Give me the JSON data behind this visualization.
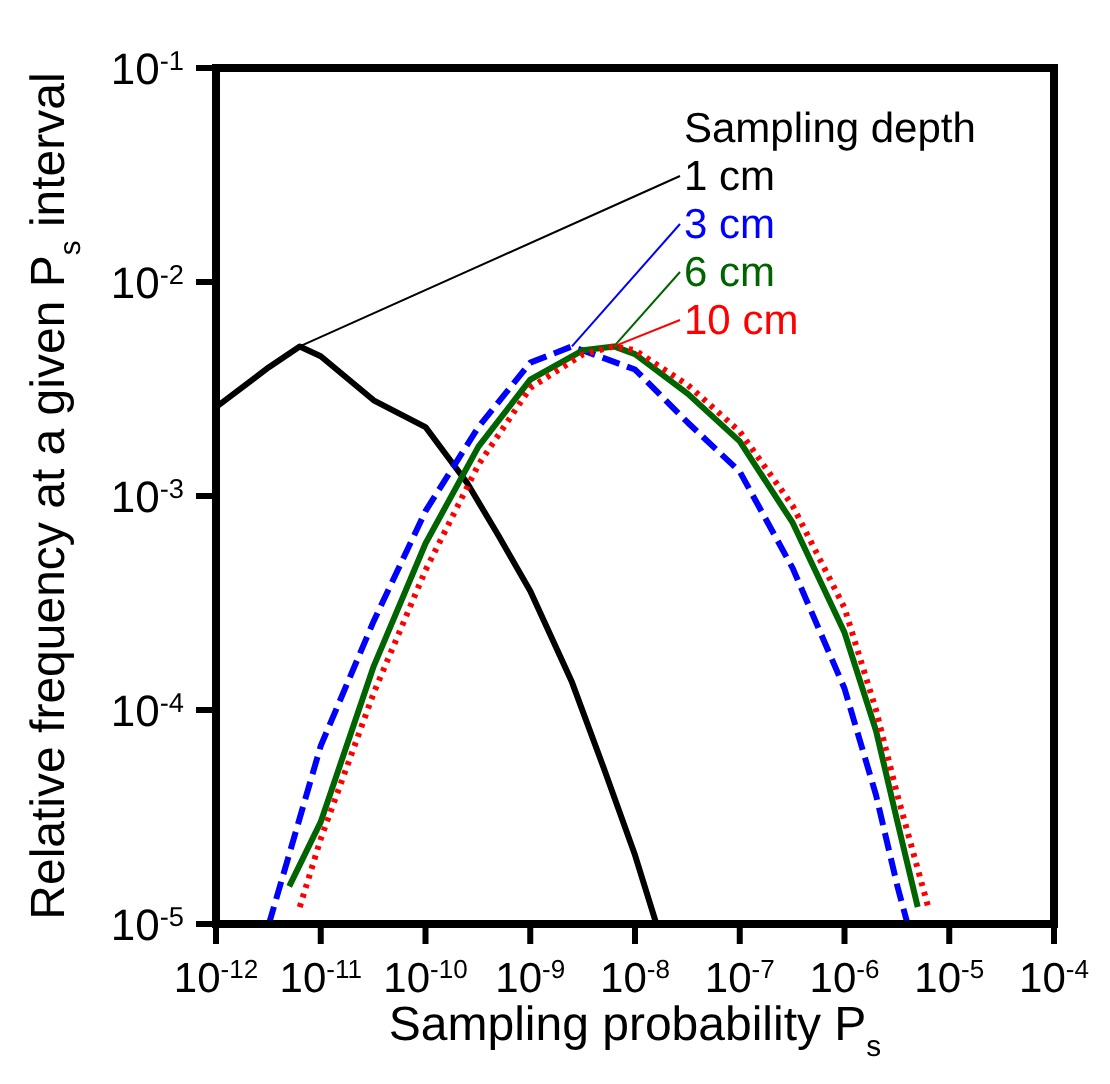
{
  "chart_data": {
    "type": "line",
    "xlabel": "Sampling probability P$_{s}$",
    "ylabel": "Relative frequency at a given P$_{s}$ interval",
    "log": "xy",
    "legend": "top right",
    "legend_title": "Sampling depth",
    "xlim": [
      1e-12,
      0.0001
    ],
    "ylim": [
      1e-05,
      0.1
    ],
    "xticks": [
      {
        "value": 1e-12,
        "label": "10$^{-12}$"
      },
      {
        "value": 1e-11,
        "label": "10$^{-11}$"
      },
      {
        "value": 1e-10,
        "label": "10$^{-10}$"
      },
      {
        "value": 1e-09,
        "label": "10$^{-9}$"
      },
      {
        "value": 1e-08,
        "label": "10$^{-8}$"
      },
      {
        "value": 1e-07,
        "label": "10$^{-7}$"
      },
      {
        "value": 1e-06,
        "label": "10$^{-6}$"
      },
      {
        "value": 1e-05,
        "label": "10$^{-5}$"
      },
      {
        "value": 0.0001,
        "label": "10$^{-4}$"
      }
    ],
    "yticks": [
      {
        "value": 1e-05,
        "label": "10$^{-5}$"
      },
      {
        "value": 0.0001,
        "label": "10$^{-4}$"
      },
      {
        "value": 0.001,
        "label": "10$^{-3}$"
      },
      {
        "value": 0.01,
        "label": "10$^{-2}$"
      },
      {
        "value": 0.1,
        "label": "10$^{-1}$"
      }
    ],
    "series": [
      {
        "name": "1 cm",
        "color": "#000000",
        "line_style": "solid",
        "x": [
          1e-12,
          3.2e-12,
          6.3e-12,
          1e-11,
          3.2e-11,
          1e-10,
          2.5e-10,
          5e-10,
          1e-09,
          2.5e-09,
          5e-09,
          1e-08,
          1.6e-08
        ],
        "values": [
          0.0026,
          0.004,
          0.005,
          0.0045,
          0.0028,
          0.0021,
          0.00115,
          0.00065,
          0.00036,
          0.000135,
          5.4e-05,
          2.1e-05,
          1e-05
        ]
      },
      {
        "name": "3 cm",
        "color": "#0000ff",
        "line_style": "dashed",
        "x": [
          3.2e-12,
          1e-11,
          3.2e-11,
          1e-10,
          3.2e-10,
          1e-09,
          2.5e-09,
          1e-08,
          3.2e-08,
          1e-07,
          3.2e-07,
          1e-06,
          2e-06,
          3.2e-06,
          4e-06
        ],
        "values": [
          1e-05,
          6.8e-05,
          0.00026,
          0.00085,
          0.0021,
          0.0042,
          0.005,
          0.0039,
          0.0022,
          0.0013,
          0.00046,
          0.000126,
          4e-05,
          1.5e-05,
          1e-05
        ]
      },
      {
        "name": "6 cm",
        "color": "#006400",
        "line_style": "solid",
        "x": [
          5e-12,
          1e-11,
          3.2e-11,
          1e-10,
          3.2e-10,
          1e-09,
          3.2e-09,
          6.3e-09,
          1e-08,
          3.2e-08,
          1e-07,
          3.2e-07,
          1e-06,
          2e-06,
          3.2e-06,
          5e-06
        ],
        "values": [
          1.5e-05,
          3e-05,
          0.00016,
          0.0006,
          0.0017,
          0.0035,
          0.0048,
          0.005,
          0.0046,
          0.003,
          0.0018,
          0.00075,
          0.00023,
          8e-05,
          3e-05,
          1.2e-05
        ]
      },
      {
        "name": "10 cm",
        "color": "#ff0000",
        "line_style": "dotted",
        "x": [
          6.3e-12,
          1e-11,
          3.2e-11,
          1e-10,
          3.2e-10,
          1e-09,
          3.2e-09,
          6.3e-09,
          1e-08,
          3.2e-08,
          1e-07,
          3.2e-07,
          1e-06,
          2e-06,
          3.2e-06,
          6.3e-06
        ],
        "values": [
          1.2e-05,
          2.5e-05,
          0.00012,
          0.00045,
          0.0014,
          0.0032,
          0.0046,
          0.005,
          0.0048,
          0.0033,
          0.002,
          0.0009,
          0.0003,
          0.0001,
          4e-05,
          1.2e-05
        ]
      }
    ]
  }
}
